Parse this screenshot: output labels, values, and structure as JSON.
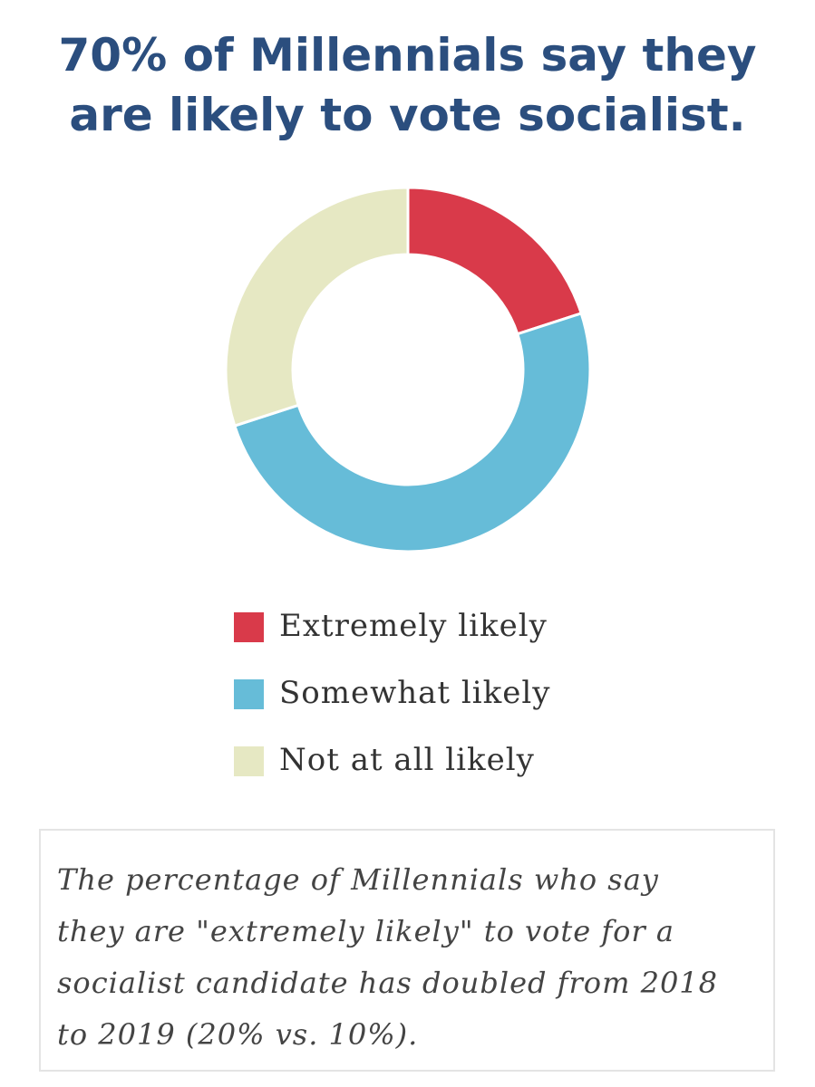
{
  "chart_data": {
    "type": "pie",
    "title": "70% of Millennials say they are likely to vote socialist.",
    "title_lines": [
      "70% of Millennials say they",
      "are likely to vote socialist."
    ],
    "categories": [
      "Extremely likely",
      "Somewhat likely",
      "Not at all likely"
    ],
    "values": [
      20,
      50,
      30
    ],
    "colors": [
      "#d93a4a",
      "#66bcd8",
      "#e6e8c3"
    ],
    "legend_position": "bottom",
    "donut": true
  },
  "note": {
    "lines": [
      "The percentage of Millennials who say",
      "they are \"extremely likely\" to vote for a",
      "socialist candidate has doubled from 2018",
      "to 2019 (20% vs. 10%)."
    ]
  }
}
